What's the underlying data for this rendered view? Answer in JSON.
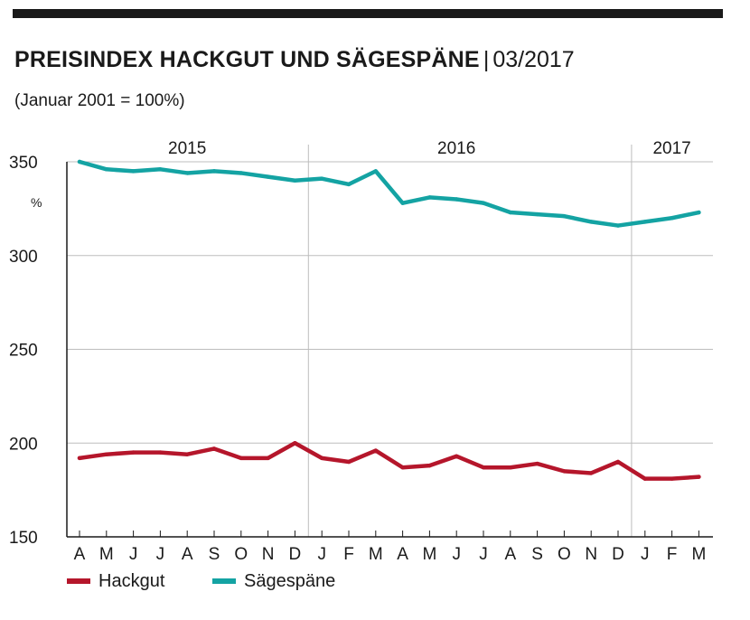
{
  "header": {
    "title": "PREISINDEX HACKGUT UND SÄGESPÄNE",
    "separator": "|",
    "date": "03/2017",
    "subtitle": "(Januar 2001 = 100%)"
  },
  "colors": {
    "hackgut": "#b5162b",
    "saegespaene": "#14a3a3",
    "grid": "#bdbdbd",
    "axis": "#1a1a1a"
  },
  "legend": [
    {
      "name": "Hackgut",
      "color": "#b5162b"
    },
    {
      "name": "Sägespäne",
      "color": "#14a3a3"
    }
  ],
  "chart_data": {
    "type": "line",
    "title": "PREISINDEX HACKGUT UND SÄGESPÄNE",
    "subtitle": "(Januar 2001 = 100%)",
    "unit_label": "%",
    "categories": [
      "A",
      "M",
      "J",
      "J",
      "A",
      "S",
      "O",
      "N",
      "D",
      "J",
      "F",
      "M",
      "A",
      "M",
      "J",
      "J",
      "A",
      "S",
      "O",
      "N",
      "D",
      "J",
      "F",
      "M"
    ],
    "year_labels": [
      {
        "label": "2015",
        "category_index": 4
      },
      {
        "label": "2016",
        "category_index": 14
      },
      {
        "label": "2017",
        "category_index": 22
      }
    ],
    "year_dividers": [
      8.5,
      20.5
    ],
    "yticks": [
      350,
      300,
      250,
      200,
      150
    ],
    "ylim": [
      150,
      350
    ],
    "grid": true,
    "legend_position": "bottom-left",
    "series": [
      {
        "name": "Sägespäne",
        "color": "#14a3a3",
        "values": [
          350,
          346,
          345,
          346,
          344,
          345,
          344,
          342,
          340,
          341,
          338,
          345,
          328,
          331,
          330,
          328,
          323,
          322,
          321,
          318,
          316,
          318,
          320,
          323
        ]
      },
      {
        "name": "Hackgut",
        "color": "#b5162b",
        "values": [
          192,
          194,
          195,
          195,
          194,
          197,
          192,
          192,
          200,
          192,
          190,
          196,
          187,
          188,
          193,
          187,
          187,
          189,
          185,
          184,
          190,
          181,
          181,
          182
        ]
      }
    ]
  }
}
